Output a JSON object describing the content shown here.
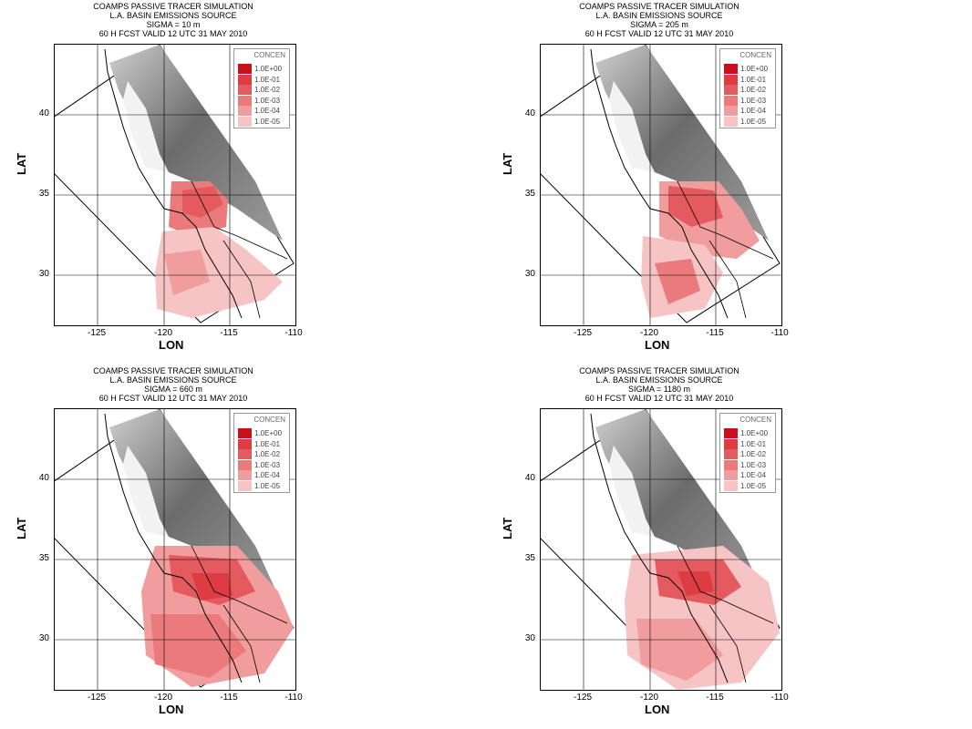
{
  "panels": [
    {
      "title1": "COAMPS PASSIVE TRACER SIMULATION",
      "title2": "L.A. BASIN EMISSIONS SOURCE",
      "title3": "SIGMA = 10 m",
      "title4": "60 H FCST VALID 12 UTC 31 MAY 2010"
    },
    {
      "title1": "COAMPS PASSIVE TRACER SIMULATION",
      "title2": "L.A. BASIN EMISSIONS SOURCE",
      "title3": "SIGMA = 205 m",
      "title4": "60 H FCST VALID 12 UTC 31 MAY 2010"
    },
    {
      "title1": "COAMPS PASSIVE TRACER SIMULATION",
      "title2": "L.A. BASIN EMISSIONS SOURCE",
      "title3": "SIGMA = 660 m",
      "title4": "60 H FCST VALID 12 UTC 31 MAY 2010"
    },
    {
      "title1": "COAMPS PASSIVE TRACER SIMULATION",
      "title2": "L.A. BASIN EMISSIONS SOURCE",
      "title3": "SIGMA = 1180 m",
      "title4": "60 H FCST VALID 12 UTC 31 MAY 2010"
    }
  ],
  "axes": {
    "xlabel": "LON",
    "ylabel": "LAT",
    "xticks": [
      "-125",
      "-120",
      "-115",
      "-110"
    ],
    "yticks": [
      "40",
      "35",
      "30"
    ]
  },
  "legend": {
    "title": "CONCEN",
    "levels": [
      {
        "label": "1.0E+00",
        "color": "#c8101a"
      },
      {
        "label": "1.0E-01",
        "color": "#dc3c42"
      },
      {
        "label": "1.0E-02",
        "color": "#e45a5e"
      },
      {
        "label": "1.0E-03",
        "color": "#eb7a7c"
      },
      {
        "label": "1.0E-04",
        "color": "#f19c9d"
      },
      {
        "label": "1.0E-05",
        "color": "#f7c4c5"
      }
    ]
  }
}
